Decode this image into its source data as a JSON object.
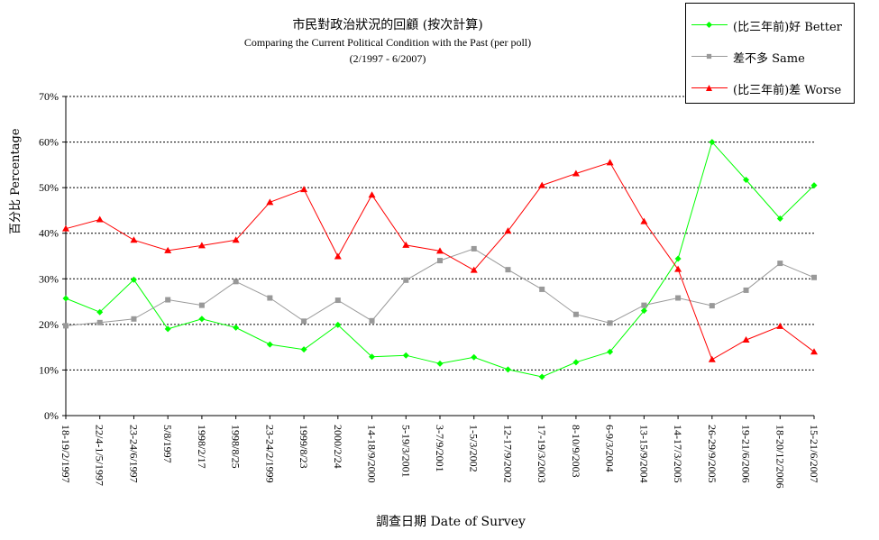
{
  "chart_data": {
    "type": "line",
    "title": "市民對政治狀況的回顧 (按次計算)",
    "subtitle": "Comparing the Current Political Condition with the Past  (per poll)",
    "date_range": "(2/1997 - 6/2007)",
    "xlabel": "調查日期 Date of Survey",
    "ylabel": "百分比 Percentage",
    "ylim": [
      0,
      70
    ],
    "yticks": [
      "0%",
      "10%",
      "20%",
      "30%",
      "40%",
      "50%",
      "60%",
      "70%"
    ],
    "grid": true,
    "legend_position": "top-right",
    "categories": [
      "18-19/2/1997",
      "22/4-1/5/1997",
      "23-24/6/1997",
      "5/8/1997",
      "1998/2/17",
      "1998/8/25",
      "23-24/2/1999",
      "1999/8/23",
      "2000/2/24",
      "14-18/9/2000",
      "5-19/3/2001",
      "3-7/9/2001",
      "1-5/3/2002",
      "12-17/9/2002",
      "17-19/3/2003",
      "8-10/9/2003",
      "6-9/3/2004",
      "13-15/9/2004",
      "14-17/3/2005",
      "26-29/9/2005",
      "19-21/6/2006",
      "18-20/12/2006",
      "15-21/6/2007"
    ],
    "series": [
      {
        "name": "(比三年前)好 Better",
        "color": "#00ff00",
        "marker": "diamond",
        "values": [
          25.7,
          22.7,
          29.8,
          19.0,
          21.2,
          19.3,
          15.6,
          14.5,
          19.9,
          12.9,
          13.2,
          11.4,
          12.8,
          10.1,
          8.5,
          11.7,
          14.0,
          23.0,
          34.4,
          60.0,
          51.7,
          43.2,
          50.5
        ]
      },
      {
        "name": "差不多 Same",
        "color": "#999999",
        "marker": "square",
        "values": [
          19.7,
          20.4,
          21.2,
          25.4,
          24.2,
          29.4,
          25.8,
          20.7,
          25.3,
          20.8,
          29.7,
          34.0,
          36.6,
          32.0,
          27.7,
          22.2,
          20.3,
          24.2,
          25.8,
          24.1,
          27.5,
          33.4,
          30.3
        ]
      },
      {
        "name": "(比三年前)差 Worse",
        "color": "#ff0000",
        "marker": "triangle",
        "values": [
          41.0,
          43.0,
          38.5,
          36.2,
          37.3,
          38.5,
          46.8,
          49.6,
          34.9,
          48.4,
          37.4,
          36.1,
          31.9,
          40.5,
          50.5,
          53.1,
          55.5,
          42.6,
          32.1,
          12.3,
          16.6,
          19.6,
          14.0
        ]
      }
    ]
  }
}
